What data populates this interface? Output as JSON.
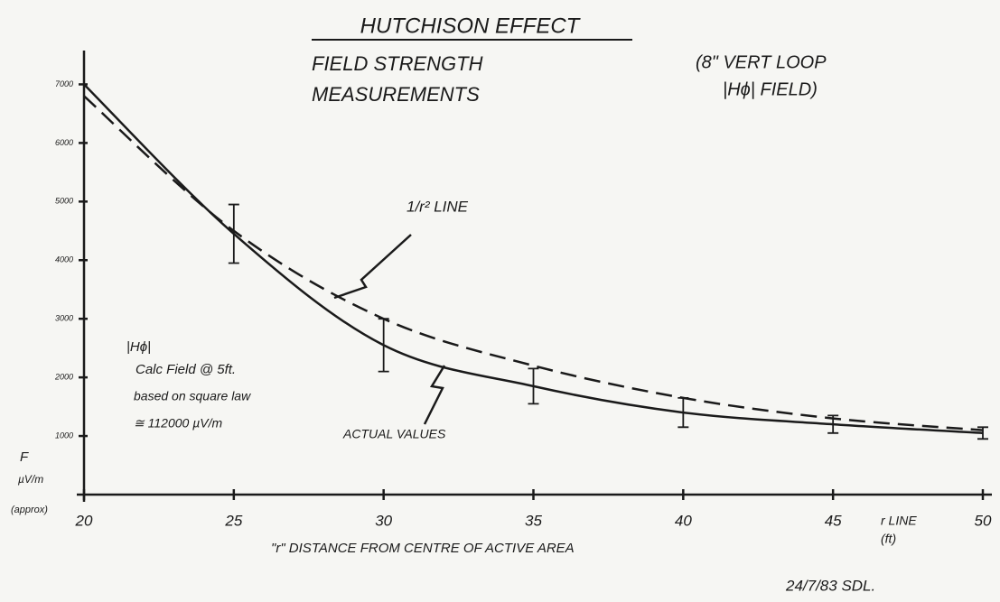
{
  "chart_data": {
    "type": "line",
    "title": "HUTCHISON EFFECT",
    "subtitle_lines": [
      "FIELD STRENGTH",
      "MEASUREMENTS"
    ],
    "note_lines": [
      "(8\" VERT LOOP",
      "|Hϕ| FIELD)"
    ],
    "x": [
      20,
      25,
      30,
      35,
      40,
      45,
      50
    ],
    "xlim": [
      20,
      50
    ],
    "xticks": [
      20,
      25,
      30,
      35,
      40,
      45,
      50
    ],
    "ylim": [
      0,
      7500
    ],
    "yticks": [
      1000,
      2000,
      3000,
      4000,
      5000,
      6000,
      7000
    ],
    "x_label": "\"r\" DISTANCE FROM CENTRE OF ACTIVE AREA",
    "x_unit_lines": [
      "r LINE",
      "(ft)"
    ],
    "y_label_lines": [
      "F",
      "µV/m",
      "(approx)"
    ],
    "series": [
      {
        "name": "ACTUAL VALUES",
        "color": "#1a1a1a",
        "dash": false,
        "values": [
          7000,
          4450,
          2550,
          1850,
          1400,
          1200,
          1050
        ],
        "errors": [
          null,
          500,
          450,
          300,
          250,
          150,
          100
        ]
      },
      {
        "name": "1/r² LINE",
        "color": "#1a1a1a",
        "dash": true,
        "values": [
          6800,
          4500,
          3000,
          2200,
          1650,
          1300,
          1100
        ]
      }
    ],
    "calc_note_lines": [
      "|Hϕ|",
      "Calc Field @ 5ft.",
      "based on square law",
      "≅ 112000 µV/m"
    ],
    "signature": "24/7/83 SDL."
  }
}
